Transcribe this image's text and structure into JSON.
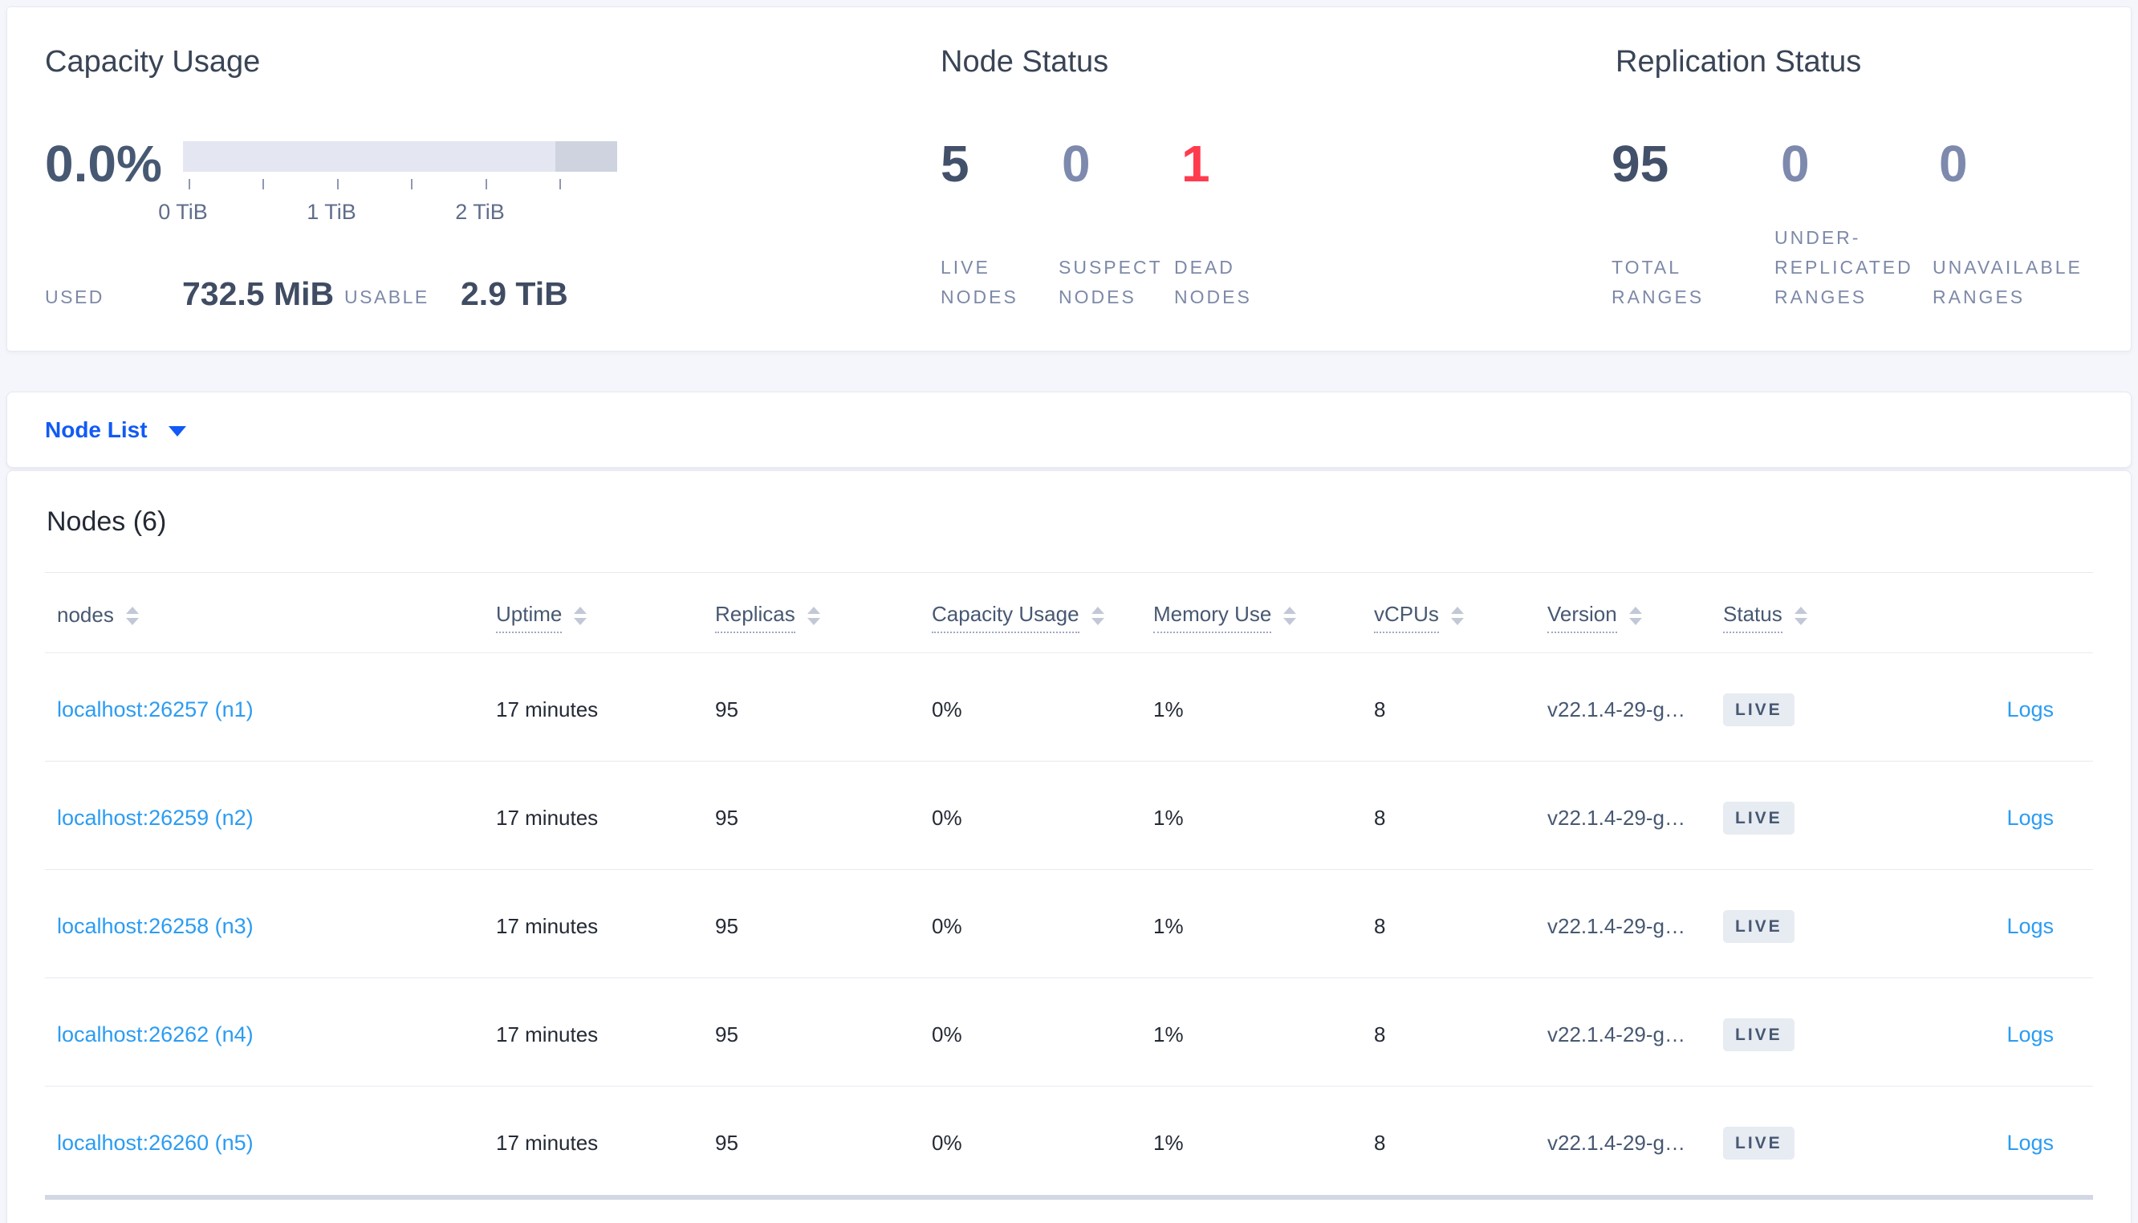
{
  "colors": {
    "page_bg": "#f4f6fb",
    "accent_blue": "#115af5",
    "link_blue": "#2b9cf2",
    "danger_red": "#ff3b4e",
    "slate": "#475872",
    "muted_slate": "#7d89ad"
  },
  "summary": {
    "capacity": {
      "title": "Capacity Usage",
      "percent": "0.0%",
      "tick_labels": [
        "0 TiB",
        "1 TiB",
        "2 TiB"
      ],
      "used_label": "USED",
      "used_value": "732.5 MiB",
      "usable_label": "USABLE",
      "usable_value": "2.9 TiB"
    },
    "node_status": {
      "title": "Node Status",
      "stats": [
        {
          "value": "5",
          "label": "LIVE NODES",
          "color": "#43506a"
        },
        {
          "value": "0",
          "label": "SUSPECT NODES",
          "color": "#7d89ad"
        },
        {
          "value": "1",
          "label": "DEAD NODES",
          "color": "#ff3b4e"
        }
      ]
    },
    "replication": {
      "title": "Replication Status",
      "stats": [
        {
          "value": "95",
          "label": "TOTAL RANGES",
          "color": "#43506a"
        },
        {
          "value": "0",
          "label": "UNDER-REPLICATED RANGES",
          "color": "#7d89ad"
        },
        {
          "value": "0",
          "label": "UNAVAILABLE RANGES",
          "color": "#7d89ad"
        }
      ]
    }
  },
  "view_selector": {
    "label": "Node List"
  },
  "table": {
    "title": "Nodes (6)",
    "logs_label": "Logs",
    "columns": [
      {
        "label": "nodes",
        "dotted": false
      },
      {
        "label": "Uptime",
        "dotted": true
      },
      {
        "label": "Replicas",
        "dotted": true
      },
      {
        "label": "Capacity Usage",
        "dotted": true
      },
      {
        "label": "Memory Use",
        "dotted": true
      },
      {
        "label": "vCPUs",
        "dotted": true
      },
      {
        "label": "Version",
        "dotted": true
      },
      {
        "label": "Status",
        "dotted": true
      }
    ],
    "rows": [
      {
        "node": "localhost:26257 (n1)",
        "uptime": "17 minutes",
        "replicas": "95",
        "capacity_usage": "0%",
        "memory_use": "1%",
        "vcpus": "8",
        "version": "v22.1.4-29-g…",
        "status": "LIVE"
      },
      {
        "node": "localhost:26259 (n2)",
        "uptime": "17 minutes",
        "replicas": "95",
        "capacity_usage": "0%",
        "memory_use": "1%",
        "vcpus": "8",
        "version": "v22.1.4-29-g…",
        "status": "LIVE"
      },
      {
        "node": "localhost:26258 (n3)",
        "uptime": "17 minutes",
        "replicas": "95",
        "capacity_usage": "0%",
        "memory_use": "1%",
        "vcpus": "8",
        "version": "v22.1.4-29-g…",
        "status": "LIVE"
      },
      {
        "node": "localhost:26262 (n4)",
        "uptime": "17 minutes",
        "replicas": "95",
        "capacity_usage": "0%",
        "memory_use": "1%",
        "vcpus": "8",
        "version": "v22.1.4-29-g…",
        "status": "LIVE"
      },
      {
        "node": "localhost:26260 (n5)",
        "uptime": "17 minutes",
        "replicas": "95",
        "capacity_usage": "0%",
        "memory_use": "1%",
        "vcpus": "8",
        "version": "v22.1.4-29-g…",
        "status": "LIVE"
      }
    ]
  }
}
